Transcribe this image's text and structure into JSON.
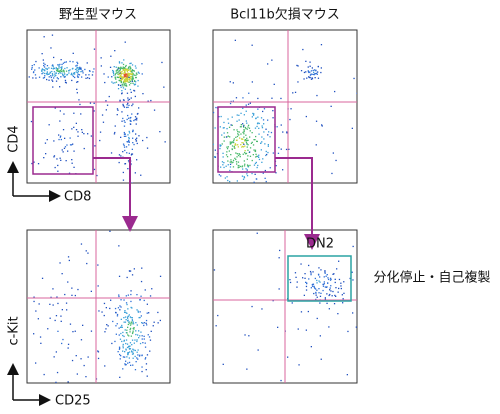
{
  "columns": [
    {
      "title": "野生型マウス"
    },
    {
      "title": "Bcl11b欠損マウス"
    }
  ],
  "axes": {
    "top_y": "CD4",
    "top_x": "CD8",
    "bottom_y": "c-Kit",
    "bottom_x": "CD25"
  },
  "gate_label": "DN2",
  "annotation": "分化停止・自己複製"
}
